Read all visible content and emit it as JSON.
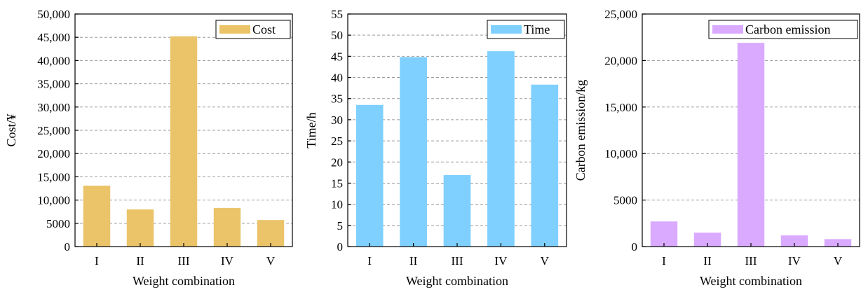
{
  "chart_data": [
    {
      "type": "bar",
      "categories": [
        "I",
        "II",
        "III",
        "IV",
        "V"
      ],
      "series": [
        {
          "name": "Cost",
          "values": [
            13100,
            8000,
            45200,
            8300,
            5700
          ]
        }
      ],
      "xlabel": "Weight combination",
      "ylabel": "Cost/¥",
      "ylim": [
        0,
        50000
      ],
      "yticks": [
        0,
        5000,
        10000,
        15000,
        20000,
        25000,
        30000,
        35000,
        40000,
        45000,
        50000
      ],
      "ytick_labels": [
        "0",
        "5000",
        "10,000",
        "15,000",
        "20,000",
        "25,000",
        "30,000",
        "35,000",
        "40,000",
        "45,000",
        "50,000"
      ],
      "grid": true,
      "legend_position": "top-right",
      "color": "#EBC46A"
    },
    {
      "type": "bar",
      "categories": [
        "I",
        "II",
        "III",
        "IV",
        "V"
      ],
      "series": [
        {
          "name": "Time",
          "values": [
            33.5,
            44.8,
            16.9,
            46.2,
            38.3
          ]
        }
      ],
      "xlabel": "Weight combination",
      "ylabel": "Time/h",
      "ylim": [
        0,
        55
      ],
      "yticks": [
        0,
        5,
        10,
        15,
        20,
        25,
        30,
        35,
        40,
        45,
        50,
        55
      ],
      "ytick_labels": [
        "0",
        "5",
        "10",
        "15",
        "20",
        "25",
        "30",
        "35",
        "40",
        "45",
        "50",
        "55"
      ],
      "grid": true,
      "legend_position": "top-right",
      "color": "#7FD0FF"
    },
    {
      "type": "bar",
      "categories": [
        "I",
        "II",
        "III",
        "IV",
        "V"
      ],
      "series": [
        {
          "name": "Carbon emission",
          "values": [
            2700,
            1500,
            21900,
            1200,
            800
          ]
        }
      ],
      "xlabel": "Weight combination",
      "ylabel": "Carbon emission/kg",
      "ylim": [
        0,
        25000
      ],
      "yticks": [
        0,
        5000,
        10000,
        15000,
        20000,
        25000
      ],
      "ytick_labels": [
        "0",
        "5000",
        "10,000",
        "15,000",
        "20,000",
        "25,000"
      ],
      "grid": true,
      "legend_position": "top-right",
      "color": "#D9AAFF"
    }
  ]
}
